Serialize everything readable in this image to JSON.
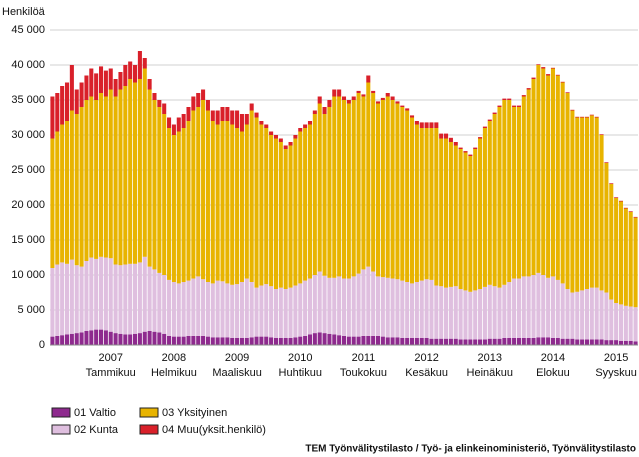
{
  "chart_data": {
    "type": "stacked_bar",
    "y_axis_label": "Henkilöä",
    "source": "TEM Työnvälitystilasto / Työ- ja elinkeinoministeriö, Työnvälitystilasto",
    "categories": [
      null,
      null,
      null,
      null,
      null,
      null,
      null,
      null,
      null,
      null,
      null,
      null,
      "2007\nTammikuu",
      null,
      null,
      null,
      null,
      null,
      null,
      null,
      null,
      null,
      null,
      null,
      null,
      "2008\nHelmikuu",
      null,
      null,
      null,
      null,
      null,
      null,
      null,
      null,
      null,
      null,
      null,
      null,
      "2009\nMaaliskuu",
      null,
      null,
      null,
      null,
      null,
      null,
      null,
      null,
      null,
      null,
      null,
      null,
      "2010\nHuhtikuu",
      null,
      null,
      null,
      null,
      null,
      null,
      null,
      null,
      null,
      null,
      null,
      null,
      "2011\nToukokuu",
      null,
      null,
      null,
      null,
      null,
      null,
      null,
      null,
      null,
      null,
      null,
      null,
      "2012\nKesäkuu",
      null,
      null,
      null,
      null,
      null,
      null,
      null,
      null,
      null,
      null,
      null,
      null,
      "2013\nHeinäkuu",
      null,
      null,
      null,
      null,
      null,
      null,
      null,
      null,
      null,
      null,
      null,
      null,
      "2014\nElokuu",
      null,
      null,
      null,
      null,
      null,
      null,
      null,
      null,
      null,
      null,
      null,
      null,
      "2015\nSyyskuu",
      null,
      null,
      null,
      null
    ],
    "series": [
      {
        "name": "01 Valtio",
        "color": "#8e2a8e",
        "values": [
          1200,
          1300,
          1400,
          1500,
          1600,
          1700,
          1800,
          2000,
          2100,
          2200,
          2200,
          2100,
          1900,
          1700,
          1600,
          1500,
          1500,
          1600,
          1700,
          1900,
          2000,
          1900,
          1800,
          1600,
          1300,
          1200,
          1200,
          1200,
          1300,
          1300,
          1300,
          1300,
          1200,
          1100,
          1100,
          1100,
          1100,
          1000,
          1000,
          1000,
          1000,
          1100,
          1200,
          1200,
          1200,
          1100,
          1000,
          1000,
          1000,
          1000,
          1100,
          1200,
          1300,
          1500,
          1700,
          1800,
          1700,
          1600,
          1500,
          1400,
          1300,
          1200,
          1200,
          1200,
          1300,
          1300,
          1300,
          1300,
          1200,
          1100,
          1100,
          1100,
          1000,
          1000,
          1000,
          1000,
          1000,
          1000,
          900,
          900,
          900,
          900,
          900,
          900,
          800,
          800,
          800,
          800,
          800,
          800,
          900,
          900,
          900,
          1000,
          1000,
          1000,
          1000,
          1000,
          1000,
          1000,
          1100,
          1100,
          1100,
          1000,
          1000,
          900,
          900,
          900,
          800,
          800,
          800,
          800,
          800,
          800,
          700,
          700,
          700,
          600,
          600,
          600,
          500
        ]
      },
      {
        "name": "02 Kunta",
        "color": "#dfbfdf",
        "values": [
          9800,
          10200,
          10400,
          10100,
          10600,
          9700,
          9400,
          10000,
          10400,
          10100,
          10400,
          10400,
          10500,
          9800,
          9800,
          10000,
          10100,
          10000,
          10100,
          10700,
          9200,
          8900,
          8500,
          8400,
          8000,
          7800,
          7600,
          7800,
          7900,
          8200,
          8500,
          8100,
          7800,
          7700,
          8100,
          8000,
          7700,
          7600,
          7700,
          8000,
          8500,
          7900,
          7000,
          7300,
          7500,
          7300,
          7000,
          7200,
          7000,
          7200,
          7400,
          7600,
          7900,
          8000,
          8300,
          8700,
          8200,
          8000,
          8100,
          8400,
          8200,
          8300,
          8600,
          9000,
          9500,
          9900,
          9200,
          8500,
          8500,
          8500,
          8400,
          8300,
          8200,
          8000,
          7800,
          8000,
          8200,
          8400,
          8400,
          7600,
          7500,
          7300,
          7400,
          7500,
          7200,
          7000,
          6800,
          7000,
          7200,
          7500,
          7700,
          7500,
          7300,
          7600,
          8000,
          8500,
          8500,
          8800,
          8800,
          9000,
          9200,
          8900,
          8500,
          8800,
          8300,
          7900,
          7100,
          6600,
          6800,
          7000,
          7200,
          7400,
          7400,
          7000,
          6800,
          5800,
          5300,
          5200,
          5000,
          4900,
          4900
        ]
      },
      {
        "name": "03 Yksityinen",
        "color": "#e8b400",
        "values": [
          18500,
          19000,
          19700,
          20400,
          21300,
          21600,
          22800,
          23000,
          23000,
          22700,
          23400,
          23000,
          24100,
          24000,
          25100,
          25500,
          26400,
          25900,
          26200,
          26900,
          25300,
          24200,
          23700,
          23000,
          21700,
          21000,
          21700,
          22000,
          22800,
          24000,
          24200,
          25600,
          24500,
          23200,
          22300,
          22900,
          23200,
          22900,
          22300,
          21500,
          22000,
          24500,
          24300,
          23000,
          22300,
          21600,
          21500,
          20800,
          20000,
          20300,
          21000,
          21700,
          21800,
          22000,
          23000,
          24000,
          23100,
          24400,
          25900,
          25700,
          25500,
          25000,
          25200,
          25800,
          24700,
          26300,
          25500,
          24700,
          25300,
          25900,
          25500,
          25100,
          24800,
          24500,
          23700,
          22500,
          21800,
          21600,
          21700,
          22500,
          21100,
          21300,
          20700,
          20100,
          20000,
          19700,
          19400,
          20200,
          21500,
          22700,
          23400,
          24600,
          25800,
          26400,
          26000,
          24500,
          24500,
          25700,
          26700,
          28000,
          29700,
          29500,
          28900,
          29700,
          29200,
          28700,
          28000,
          26000,
          24900,
          24700,
          24500,
          24600,
          24300,
          22200,
          18500,
          16500,
          15000,
          14700,
          13900,
          13500,
          12800
        ]
      },
      {
        "name": "04 Muu(yksit.henkilö)",
        "color": "#d9202a",
        "values": [
          6000,
          5500,
          5500,
          5500,
          6500,
          3500,
          3500,
          3500,
          4000,
          3800,
          3800,
          3700,
          3000,
          2500,
          2500,
          3000,
          2500,
          2500,
          4000,
          1500,
          1500,
          1000,
          1000,
          1500,
          1500,
          1500,
          2000,
          2000,
          2000,
          2000,
          2000,
          1500,
          1500,
          1500,
          2000,
          2000,
          2000,
          2000,
          2500,
          2500,
          1500,
          1000,
          700,
          500,
          500,
          500,
          500,
          500,
          500,
          500,
          500,
          500,
          500,
          500,
          500,
          1000,
          1000,
          1000,
          1000,
          1000,
          500,
          500,
          500,
          300,
          300,
          1000,
          300,
          300,
          300,
          500,
          500,
          300,
          200,
          300,
          300,
          500,
          800,
          800,
          800,
          800,
          700,
          700,
          600,
          500,
          200,
          200,
          200,
          200,
          200,
          200,
          200,
          200,
          200,
          200,
          200,
          200,
          200,
          200,
          200,
          200,
          100,
          200,
          200,
          100,
          100,
          100,
          100,
          100,
          100,
          100,
          100,
          100,
          100,
          100,
          100,
          100,
          100,
          100,
          100,
          100,
          100
        ]
      }
    ],
    "ylim": [
      0,
      45000
    ],
    "yticks": [
      {
        "value": 0,
        "label": "0"
      },
      {
        "value": 5000,
        "label": "5 000"
      },
      {
        "value": 10000,
        "label": "10 000"
      },
      {
        "value": 15000,
        "label": "15 000"
      },
      {
        "value": 20000,
        "label": "20 000"
      },
      {
        "value": 25000,
        "label": "25 000"
      },
      {
        "value": 30000,
        "label": "30 000"
      },
      {
        "value": 35000,
        "label": "35 000"
      },
      {
        "value": 40000,
        "label": "40 000"
      },
      {
        "value": 45000,
        "label": "45 000"
      }
    ],
    "grid": true
  }
}
